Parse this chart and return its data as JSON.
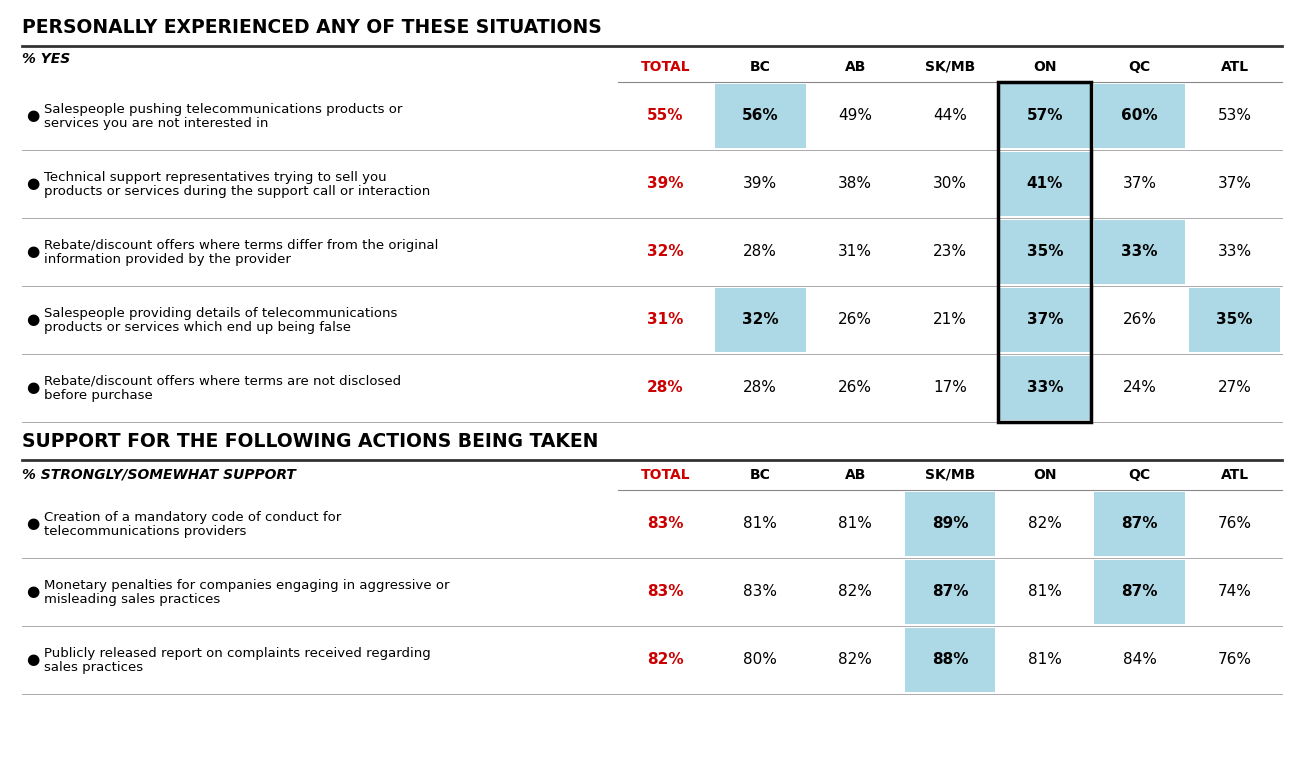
{
  "title1": "PERSONALLY EXPERIENCED ANY OF THESE SITUATIONS",
  "title2": "SUPPORT FOR THE FOLLOWING ACTIONS BEING TAKEN",
  "subtitle1": "% YES",
  "subtitle2": "% STRONGLY/SOMEWHAT SUPPORT",
  "columns": [
    "TOTAL",
    "BC",
    "AB",
    "SK/MB",
    "ON",
    "QC",
    "ATL"
  ],
  "section1_rows": [
    {
      "label_lines": [
        "Salespeople pushing telecommunications products or",
        "services you are not interested in"
      ],
      "values": [
        "55%",
        "56%",
        "49%",
        "44%",
        "57%",
        "60%",
        "53%"
      ],
      "highlight_cols": [
        1,
        4,
        5
      ]
    },
    {
      "label_lines": [
        "Technical support representatives trying to sell you",
        "products or services during the support call or interaction"
      ],
      "values": [
        "39%",
        "39%",
        "38%",
        "30%",
        "41%",
        "37%",
        "37%"
      ],
      "highlight_cols": [
        4
      ]
    },
    {
      "label_lines": [
        "Rebate/discount offers where terms differ from the original",
        "information provided by the provider"
      ],
      "values": [
        "32%",
        "28%",
        "31%",
        "23%",
        "35%",
        "33%",
        "33%"
      ],
      "highlight_cols": [
        4,
        5
      ]
    },
    {
      "label_lines": [
        "Salespeople providing details of telecommunications",
        "products or services which end up being false"
      ],
      "values": [
        "31%",
        "32%",
        "26%",
        "21%",
        "37%",
        "26%",
        "35%"
      ],
      "highlight_cols": [
        1,
        4,
        6
      ]
    },
    {
      "label_lines": [
        "Rebate/discount offers where terms are not disclosed",
        "before purchase"
      ],
      "values": [
        "28%",
        "28%",
        "26%",
        "17%",
        "33%",
        "24%",
        "27%"
      ],
      "highlight_cols": [
        4
      ]
    }
  ],
  "section2_rows": [
    {
      "label_lines": [
        "Creation of a mandatory code of conduct for",
        "telecommunications providers"
      ],
      "values": [
        "83%",
        "81%",
        "81%",
        "89%",
        "82%",
        "87%",
        "76%"
      ],
      "highlight_cols": [
        3,
        5
      ]
    },
    {
      "label_lines": [
        "Monetary penalties for companies engaging in aggressive or",
        "misleading sales practices"
      ],
      "values": [
        "83%",
        "83%",
        "82%",
        "87%",
        "81%",
        "87%",
        "74%"
      ],
      "highlight_cols": [
        3,
        5
      ]
    },
    {
      "label_lines": [
        "Publicly released report on complaints received regarding",
        "sales practices"
      ],
      "values": [
        "82%",
        "80%",
        "82%",
        "88%",
        "81%",
        "84%",
        "76%"
      ],
      "highlight_cols": [
        3
      ]
    }
  ],
  "highlight_color": "#add8e6",
  "total_color": "#cc0000",
  "background": "#ffffff",
  "text_color": "#000000",
  "on_col_idx": 4
}
